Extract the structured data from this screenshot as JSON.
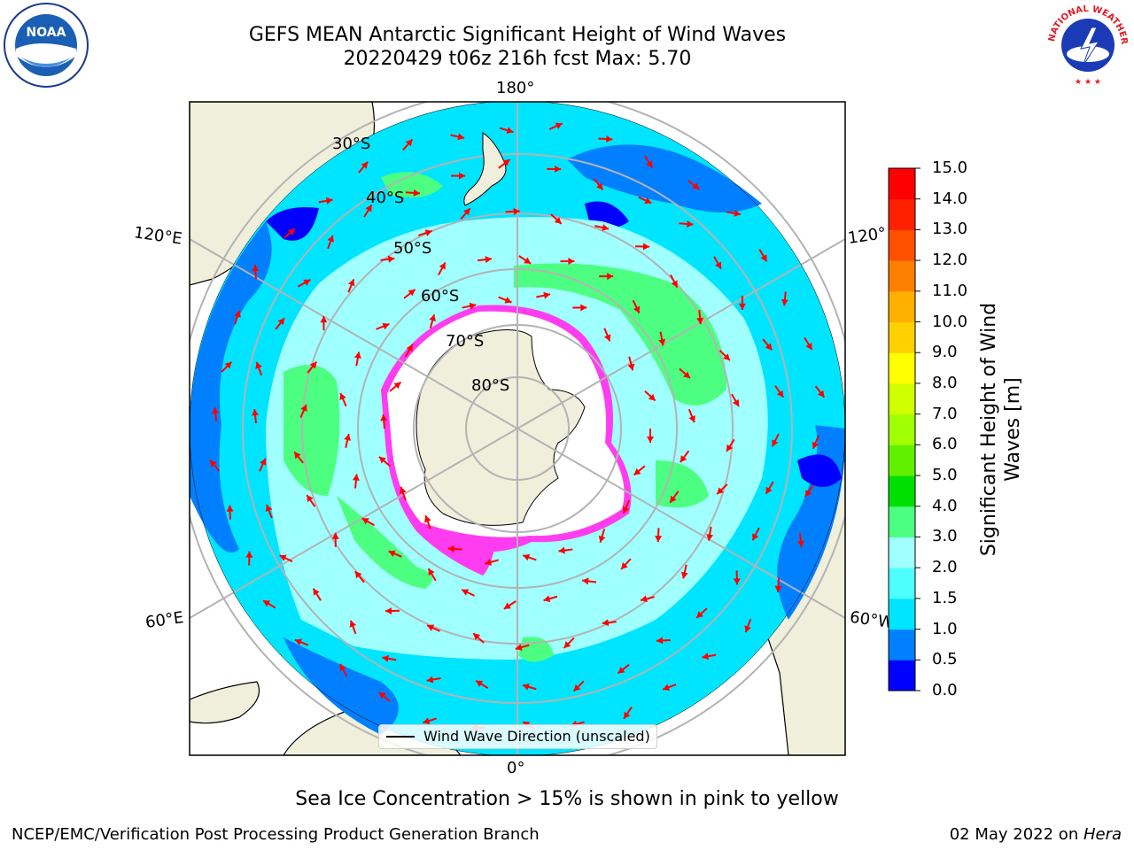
{
  "title": {
    "line1": "GEFS MEAN Antarctic Significant Height of Wind Waves",
    "line2": "20220429 t06z 216h fcst   Max: 5.70"
  },
  "map": {
    "projection": "south-polar-stereographic",
    "longitude_labels": {
      "top": "180°",
      "bottom": "0°",
      "left_upper": "120°E",
      "left_lower": "60°E",
      "right_upper": "120°",
      "right_lower": "60°W"
    },
    "latitude_labels": [
      "30°S",
      "40°S",
      "50°S",
      "60°S",
      "70°S",
      "80°S"
    ],
    "colors": {
      "land": "#efefdc",
      "ice": "#ffffff",
      "ocean_base": "#00e5ff",
      "arrow": "#ff0000",
      "grid": "#b3b3b3",
      "sea_ice_edge": "#ff3cf0"
    }
  },
  "legend": {
    "label": "Wind Wave Direction (unscaled)"
  },
  "colorbar": {
    "label_line1": "Significant Height of Wind",
    "label_line2": "Waves [m]",
    "ticks": [
      "15.0",
      "14.0",
      "13.0",
      "12.0",
      "11.0",
      "10.0",
      "9.0",
      "8.0",
      "7.0",
      "6.0",
      "5.0",
      "4.0",
      "3.0",
      "2.0",
      "1.5",
      "1.0",
      "0.5",
      "0.0"
    ],
    "colors_bottom_to_top": [
      "#0000ff",
      "#0080ff",
      "#00e5ff",
      "#4dffff",
      "#a0ffff",
      "#4dff80",
      "#00e000",
      "#60f000",
      "#a0ff00",
      "#d0ff00",
      "#ffff00",
      "#ffd000",
      "#ffb000",
      "#ff8000",
      "#ff5000",
      "#ff2000",
      "#ff0000"
    ]
  },
  "subtitle": "Sea Ice Concentration > 15% is shown in pink to yellow",
  "footer": {
    "left": "NCEP/EMC/Verification Post Processing Product Generation Branch",
    "date": "02 May 2022 on ",
    "host": "Hera"
  },
  "logos": {
    "noaa": "NOAA",
    "nws": "NATIONAL WEATHER SERVICE"
  }
}
